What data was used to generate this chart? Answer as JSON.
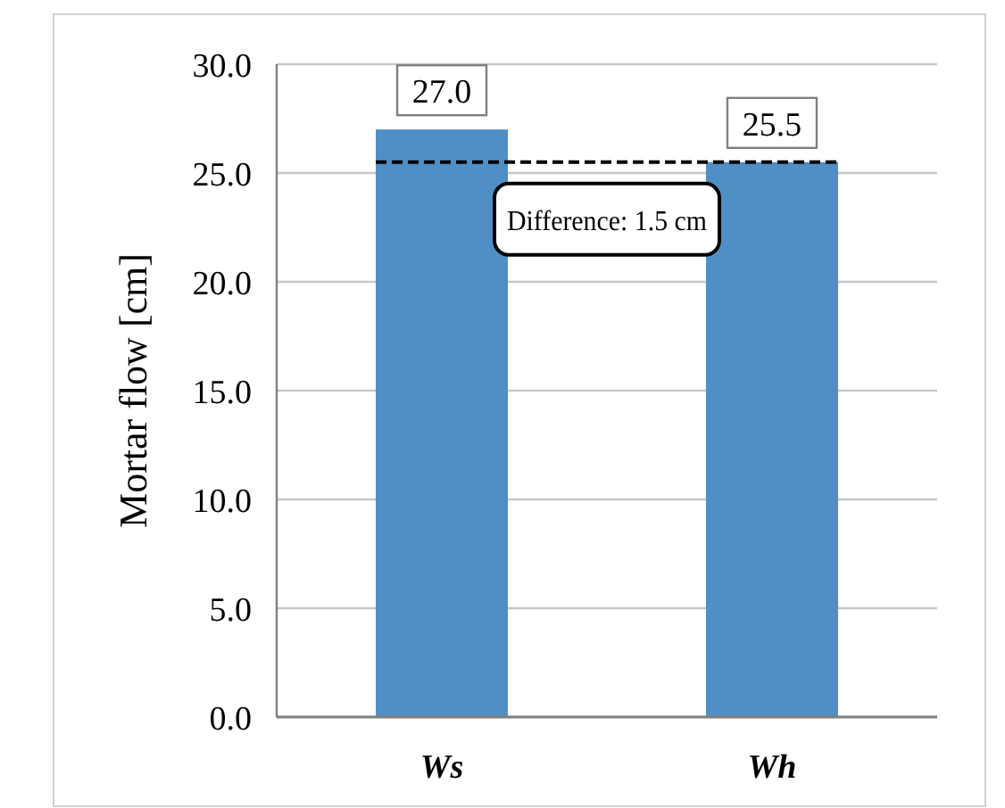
{
  "chart_data": {
    "type": "bar",
    "ylabel": "Mortar flow [cm]",
    "categories": [
      "Ws",
      "Wh"
    ],
    "values": [
      27.0,
      25.5
    ],
    "color": "#4f8fc6",
    "value_labels": [
      "27.0",
      "25.5"
    ],
    "ylim": [
      0,
      30
    ],
    "yticks": [
      {
        "value": 0,
        "label": "0.0"
      },
      {
        "value": 5,
        "label": "5.0"
      },
      {
        "value": 10,
        "label": "10.0"
      },
      {
        "value": 15,
        "label": "15.0"
      },
      {
        "value": 20,
        "label": "20.0"
      },
      {
        "value": 25,
        "label": "25.0"
      },
      {
        "value": 30,
        "label": "30.0"
      }
    ],
    "grid": "y",
    "annotations": [
      "Difference: 1.5 cm"
    ],
    "ref_lines": [
      {
        "axis": "y",
        "value": 25.5,
        "color": "#000000",
        "line_style": "dashed"
      }
    ]
  }
}
